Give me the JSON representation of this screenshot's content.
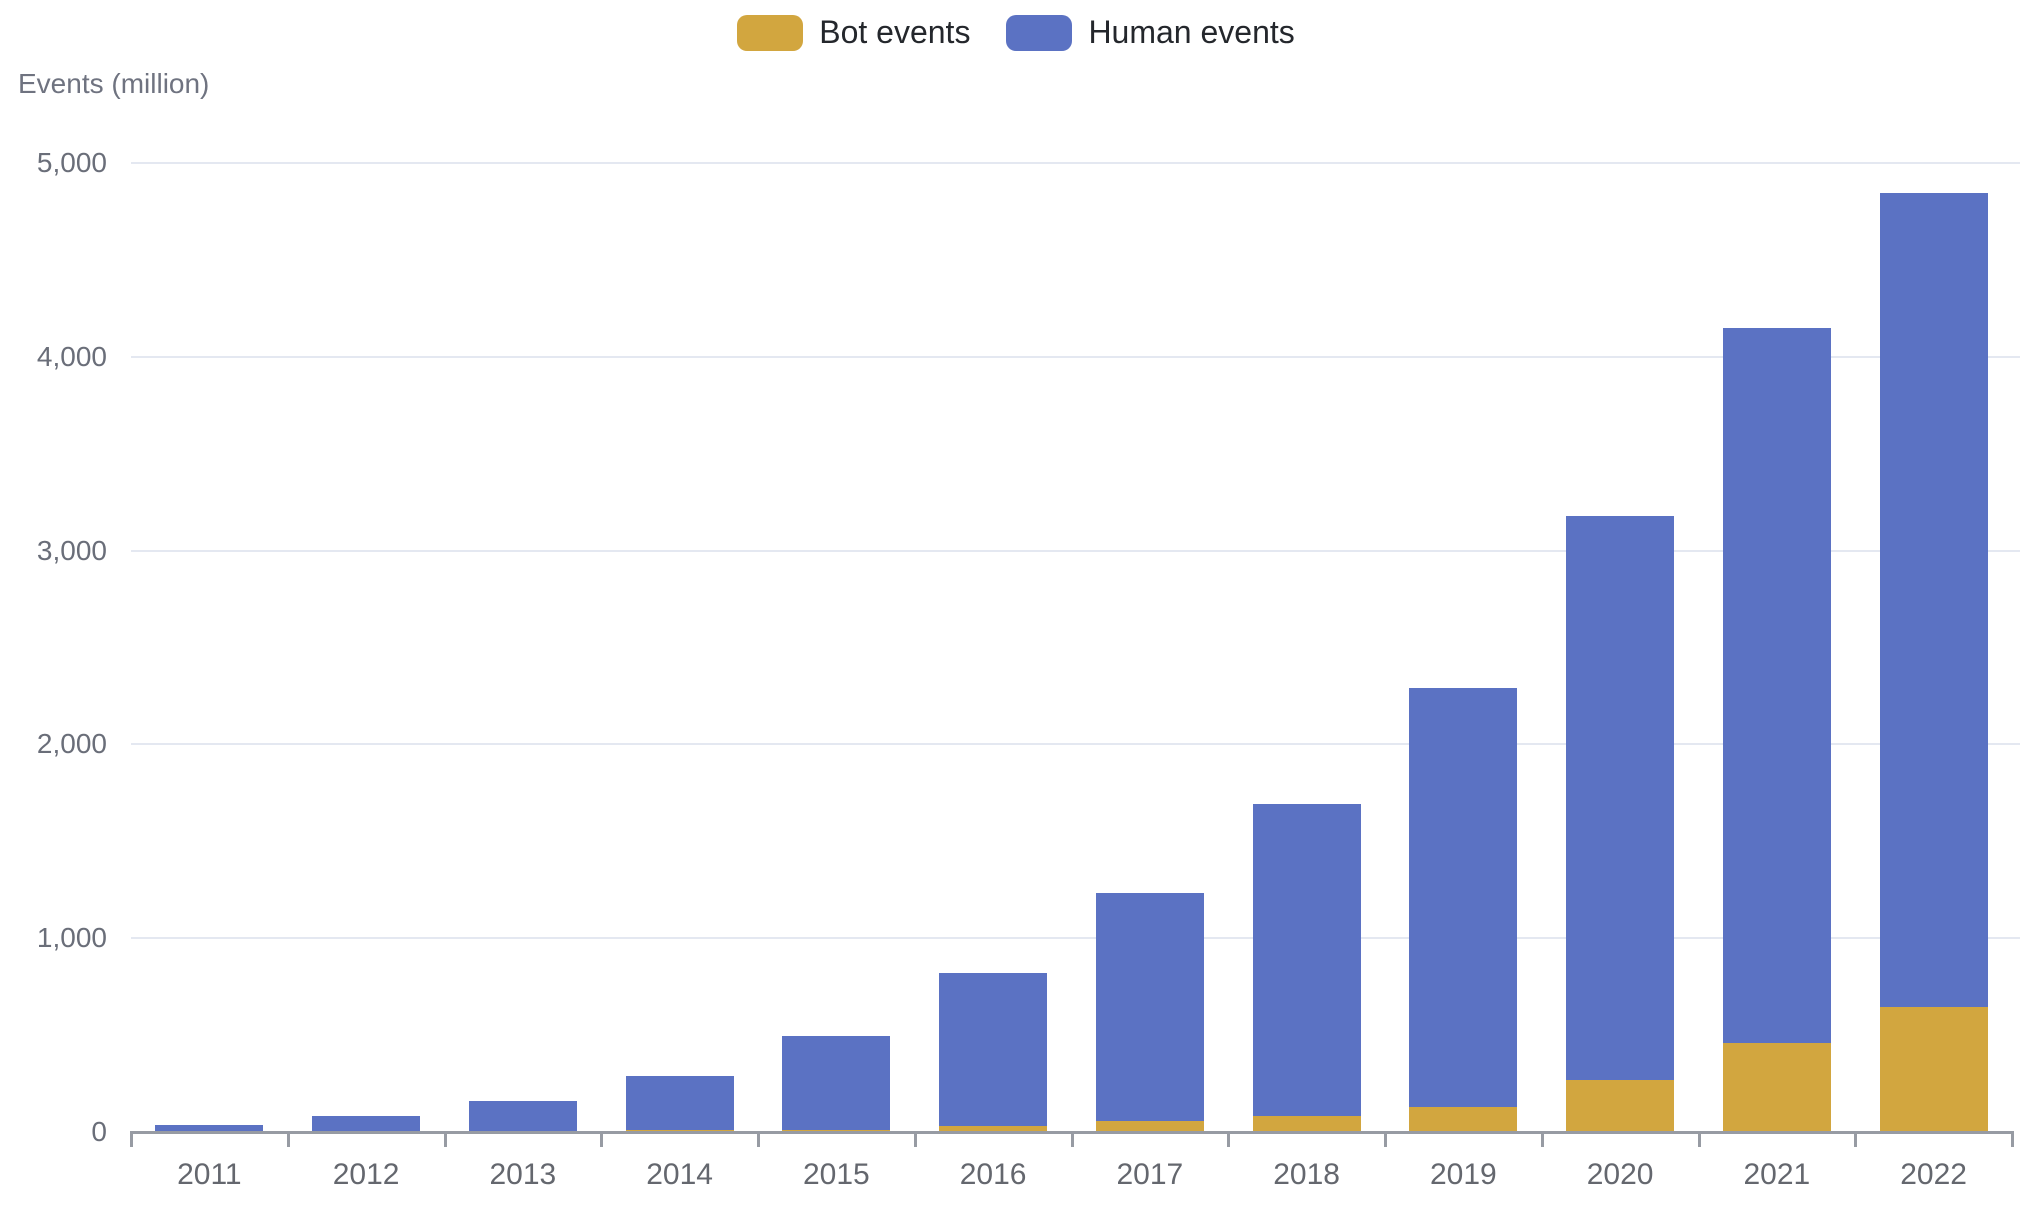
{
  "legend": {
    "items": [
      {
        "label": "Bot events",
        "color": "#D2A63F"
      },
      {
        "label": "Human events",
        "color": "#5B72C3"
      }
    ]
  },
  "y_axis_title": "Events (million)",
  "colors": {
    "bot": "#D2A63F",
    "human": "#5B72C3",
    "gridline": "#e4e8f1",
    "axis_line": "#979ba3",
    "tick_text": "#6a6e79",
    "year_text": "#64676e",
    "legend_text": "#24272c"
  },
  "chart_data": {
    "type": "bar",
    "stacked": true,
    "title": "",
    "xlabel": "",
    "ylabel": "Events (million)",
    "ylim": [
      0,
      5000
    ],
    "grid": true,
    "legend_position": "top",
    "y_ticks": [
      {
        "label": "5,000",
        "value": 5000
      },
      {
        "label": "4,000",
        "value": 4000
      },
      {
        "label": "3,000",
        "value": 3000
      },
      {
        "label": "2,000",
        "value": 2000
      },
      {
        "label": "1,000",
        "value": 1000
      },
      {
        "label": "0",
        "value": 0
      }
    ],
    "categories": [
      "2011",
      "2012",
      "2013",
      "2014",
      "2015",
      "2016",
      "2017",
      "2018",
      "2019",
      "2020",
      "2021",
      "2022"
    ],
    "series": [
      {
        "name": "Bot events",
        "color": "#D2A63F",
        "values": [
          2,
          3,
          5,
          8,
          12,
          30,
          55,
          80,
          130,
          270,
          460,
          645
        ]
      },
      {
        "name": "Human events",
        "color": "#5B72C3",
        "values": [
          33,
          77,
          155,
          282,
          483,
          790,
          1180,
          1610,
          2160,
          2910,
          3690,
          4200
        ]
      }
    ]
  }
}
